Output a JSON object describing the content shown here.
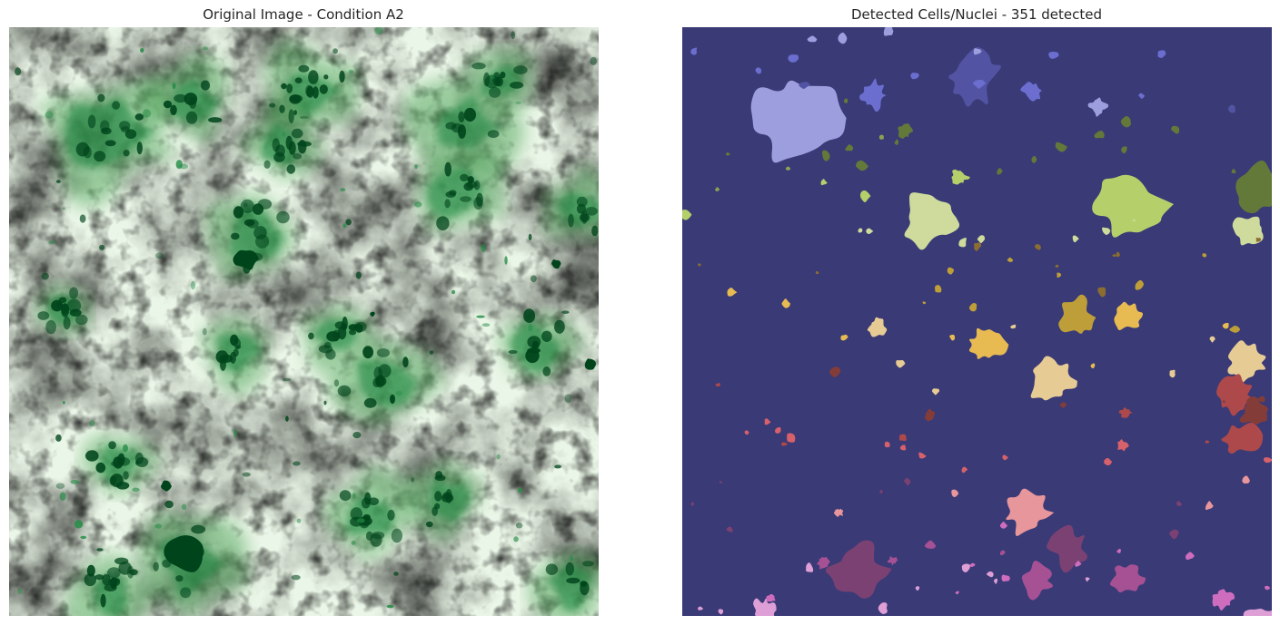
{
  "left_panel": {
    "title": "Original Image - Condition A2",
    "colormap": "Greens",
    "colors": {
      "light": "#eaf6e7",
      "mid": "#57a861",
      "dark": "#00441b"
    }
  },
  "right_panel": {
    "title": "Detected Cells/Nuclei - 351 detected",
    "colormap": "tab20b",
    "background_color": "#393a76",
    "detected_count": 351
  }
}
